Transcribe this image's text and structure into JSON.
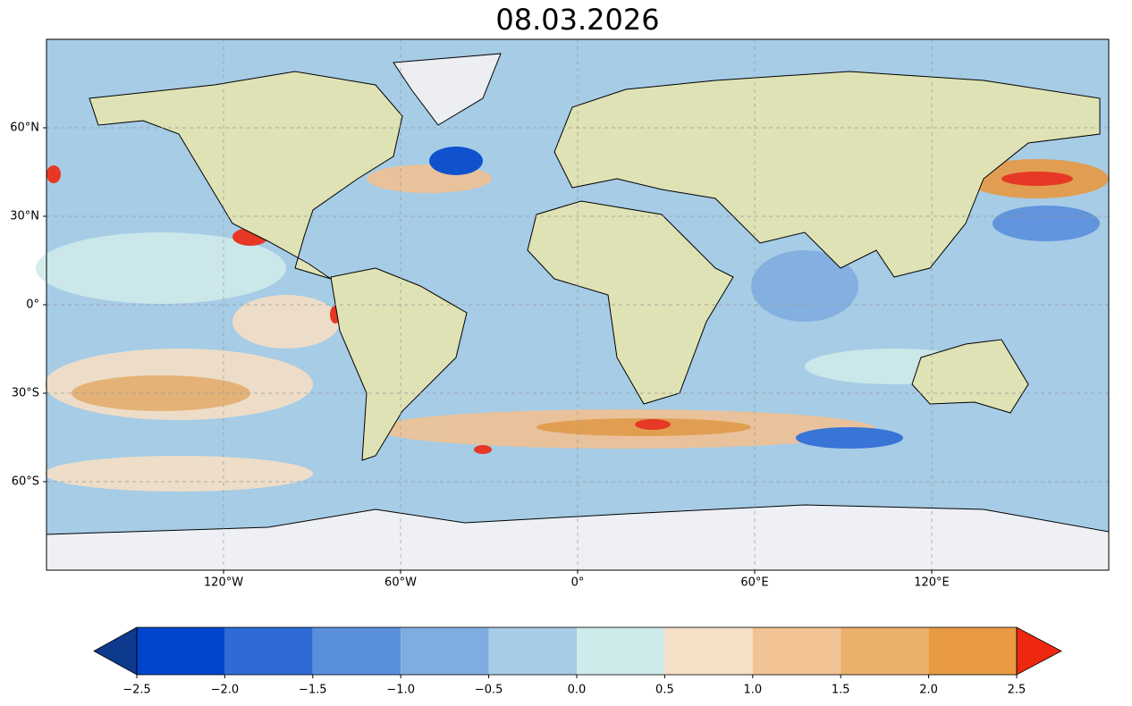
{
  "title": "08.03.2026",
  "map": {
    "xlim": [
      -180,
      180
    ],
    "ylim": [
      -90,
      90
    ],
    "grid": true,
    "xticks": [
      {
        "value": -120,
        "label": "120°W"
      },
      {
        "value": -60,
        "label": "60°W"
      },
      {
        "value": 0,
        "label": "0°"
      },
      {
        "value": 60,
        "label": "60°E"
      },
      {
        "value": 120,
        "label": "120°E"
      }
    ],
    "yticks": [
      {
        "value": -60,
        "label": "60°S"
      },
      {
        "value": -30,
        "label": "30°S"
      },
      {
        "value": 0,
        "label": "0°"
      },
      {
        "value": 30,
        "label": "30°N"
      },
      {
        "value": 60,
        "label": "60°N"
      }
    ]
  },
  "colorbar": {
    "lim": [
      -2.5,
      2.5
    ],
    "ticks": [
      {
        "value": -2.5,
        "label": "−2.5"
      },
      {
        "value": -2,
        "label": "−2.0"
      },
      {
        "value": -1.5,
        "label": "−1.5"
      },
      {
        "value": -1,
        "label": "−1.0"
      },
      {
        "value": -0.5,
        "label": "−0.5"
      },
      {
        "value": 0,
        "label": "0.0"
      },
      {
        "value": 0.5,
        "label": "0.5"
      },
      {
        "value": 1,
        "label": "1.0"
      },
      {
        "value": 1.5,
        "label": "1.5"
      },
      {
        "value": 2,
        "label": "2.0"
      },
      {
        "value": 2.5,
        "label": "2.5"
      }
    ],
    "colors": [
      "#0045cc",
      "#2e6bd6",
      "#5a8fdc",
      "#80ade0",
      "#a6cce6",
      "#cfeaea",
      "#f5dfc5",
      "#f1c293",
      "#ebb06c",
      "#e89a42"
    ],
    "under_color": "#0d3a8c",
    "over_color": "#ee2810"
  }
}
